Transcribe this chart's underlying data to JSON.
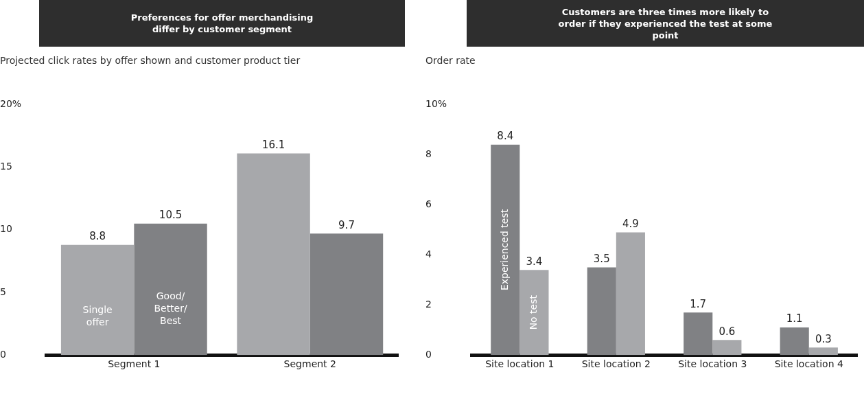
{
  "chart_data": [
    {
      "type": "bar",
      "title": "Preferences for offer merchandising differ by customer segment",
      "subtitle": "Projected click rates by offer shown and customer product tier",
      "categories": [
        "Segment 1",
        "Segment 2"
      ],
      "series": [
        {
          "name": "Single offer",
          "color": "#a7a8ab",
          "values": [
            8.8,
            16.1
          ]
        },
        {
          "name": "Good/Better/Best",
          "color": "#808184",
          "values": [
            10.5,
            9.7
          ]
        }
      ],
      "ylim": [
        0,
        20
      ],
      "yticks": [
        0,
        5,
        10,
        15,
        {
          "value": 20,
          "label": "20%"
        }
      ],
      "grid": false,
      "legend": false,
      "data_labels": true
    },
    {
      "type": "bar",
      "title": "Customers are three times more likely to order if they experienced the test at some point",
      "subtitle": "Order rate",
      "categories": [
        "Site location 1",
        "Site location 2",
        "Site location 3",
        "Site location 4"
      ],
      "series": [
        {
          "name": "Experienced test",
          "color": "#808184",
          "values": [
            8.4,
            3.5,
            1.7,
            1.1
          ]
        },
        {
          "name": "No test",
          "color": "#a7a8ab",
          "values": [
            3.4,
            4.9,
            0.6,
            0.3
          ]
        }
      ],
      "ylim": [
        0,
        10
      ],
      "yticks": [
        0,
        2,
        4,
        6,
        8,
        {
          "value": 10,
          "label": "10%"
        }
      ],
      "grid": false,
      "legend": false,
      "data_labels": true
    }
  ]
}
